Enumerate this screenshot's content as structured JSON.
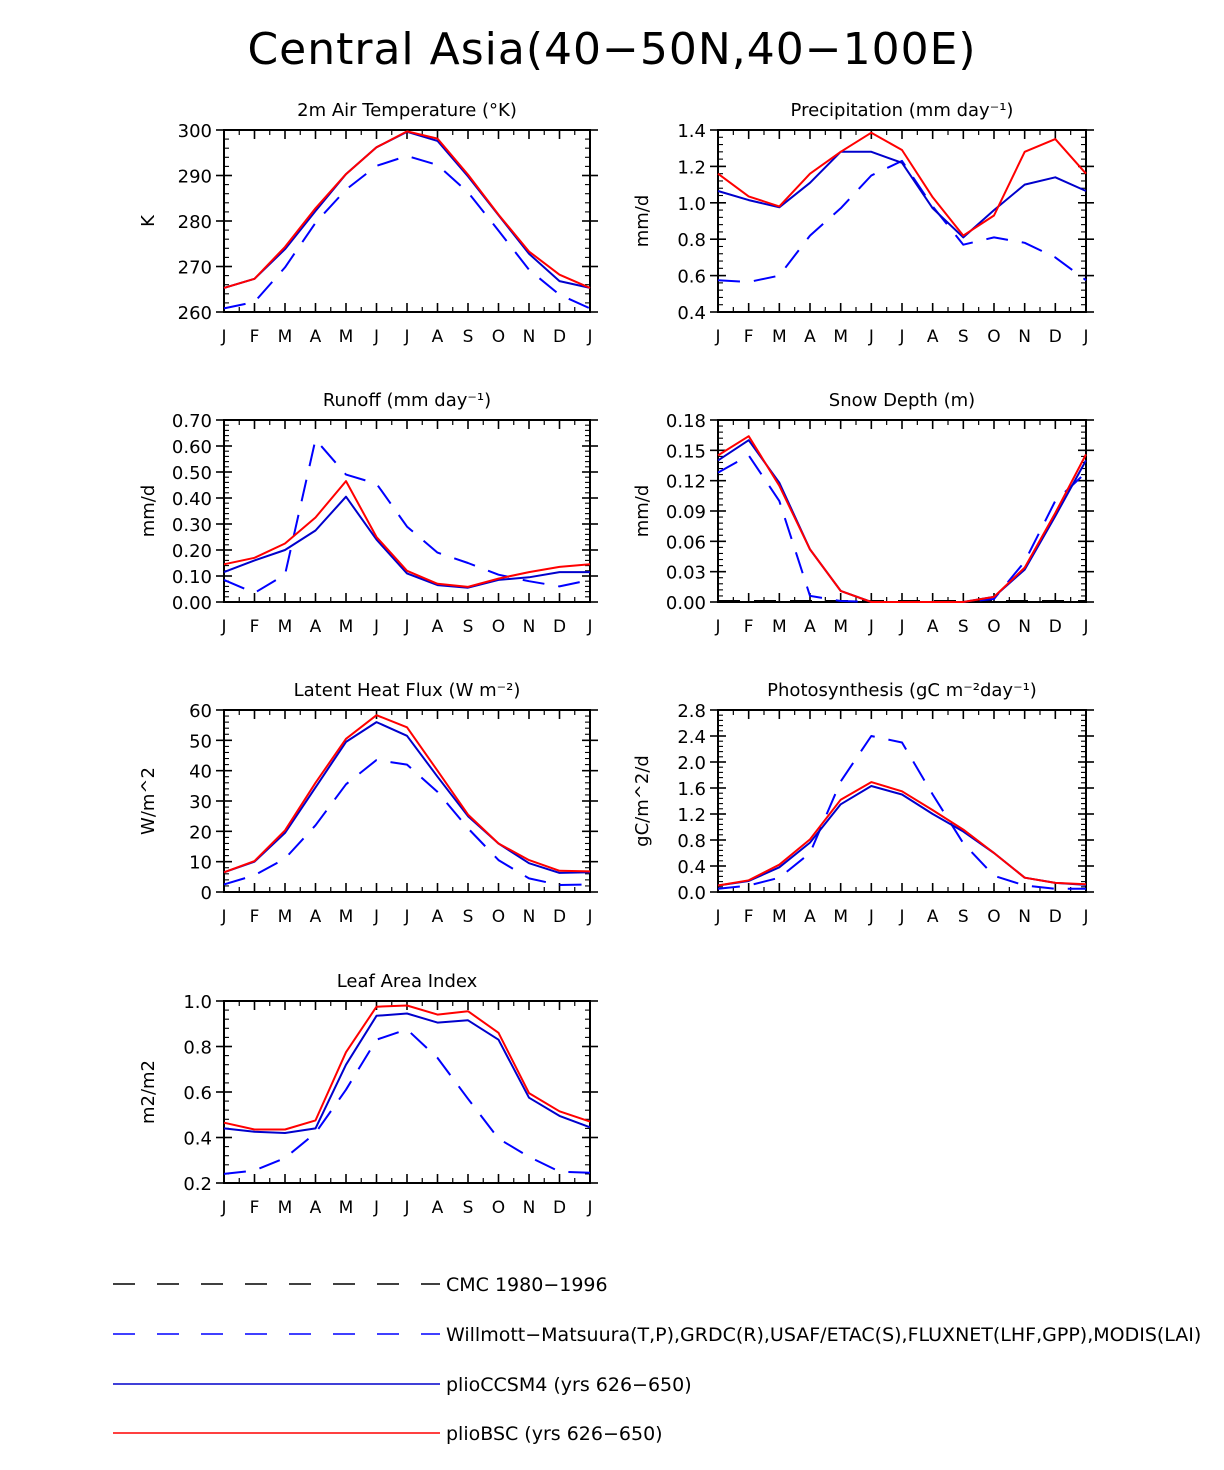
{
  "page": {
    "title": "Central Asia(40−50N,40−100E)"
  },
  "months": [
    "J",
    "F",
    "M",
    "A",
    "M",
    "J",
    "J",
    "A",
    "S",
    "O",
    "N",
    "D",
    "J"
  ],
  "colors": {
    "obs": "#0000ff",
    "cmc": "#000000",
    "ccsm4": "#0000cc",
    "bsc": "#ff0000"
  },
  "legend": [
    {
      "label": "CMC 1980−1996",
      "style": "dash",
      "color": "#000000"
    },
    {
      "label": "Willmott−Matsuura(T,P),GRDC(R),USAF/ETAC(S),FLUXNET(LHF,GPP),MODIS(LAI)",
      "style": "dash",
      "color": "#0000ff"
    },
    {
      "label": "plioCCSM4 (yrs 626−650)",
      "style": "solid",
      "color": "#0000cc"
    },
    {
      "label": "plioBSC (yrs 626−650)",
      "style": "solid",
      "color": "#ff0000"
    }
  ],
  "chart_data": [
    {
      "type": "line",
      "title": "2m Air Temperature (°K)",
      "ylabel": "K",
      "ylim": [
        260,
        300
      ],
      "yticks": [
        260,
        270,
        280,
        290,
        300
      ],
      "ytick_labels": [
        "260",
        "270",
        "280",
        "290",
        "300"
      ],
      "series": [
        {
          "name": "Willmott−Matsuura",
          "style": "dash",
          "color": "#0000ff",
          "values": [
            260.8,
            262.2,
            269.8,
            279.6,
            286.9,
            292.1,
            294.3,
            292.3,
            286.3,
            277.9,
            269.3,
            263.8,
            260.8
          ]
        },
        {
          "name": "plioCCSM4",
          "style": "solid",
          "color": "#0000cc",
          "values": [
            265.3,
            267.3,
            273.8,
            282.2,
            290.3,
            296.2,
            299.6,
            297.6,
            289.8,
            281.3,
            272.8,
            266.8,
            265.3
          ]
        },
        {
          "name": "plioBSC",
          "style": "solid",
          "color": "#ff0000",
          "values": [
            265.3,
            267.3,
            274.3,
            282.8,
            290.3,
            296.2,
            299.7,
            298.1,
            290.2,
            281.4,
            273.3,
            268.2,
            265.3
          ]
        }
      ]
    },
    {
      "type": "line",
      "title": "Precipitation (mm day⁻¹)",
      "ylabel": "mm/d",
      "ylim": [
        0.4,
        1.4
      ],
      "yticks": [
        0.4,
        0.6,
        0.8,
        1.0,
        1.2,
        1.4
      ],
      "ytick_labels": [
        "0.4",
        "0.6",
        "0.8",
        "1.0",
        "1.2",
        "1.4"
      ],
      "series": [
        {
          "name": "Willmott−Matsuura",
          "style": "dash",
          "color": "#0000ff",
          "values": [
            0.575,
            0.565,
            0.6,
            0.82,
            0.97,
            1.15,
            1.23,
            0.98,
            0.77,
            0.81,
            0.78,
            0.7,
            0.575
          ]
        },
        {
          "name": "plioCCSM4",
          "style": "solid",
          "color": "#0000cc",
          "values": [
            1.065,
            1.015,
            0.975,
            1.11,
            1.28,
            1.28,
            1.22,
            0.97,
            0.81,
            0.96,
            1.1,
            1.14,
            1.065
          ]
        },
        {
          "name": "plioBSC",
          "style": "solid",
          "color": "#ff0000",
          "values": [
            1.16,
            1.035,
            0.98,
            1.16,
            1.28,
            1.385,
            1.29,
            1.03,
            0.82,
            0.93,
            1.28,
            1.35,
            1.16
          ]
        }
      ]
    },
    {
      "type": "line",
      "title": "Runoff (mm day⁻¹)",
      "ylabel": "mm/d",
      "ylim": [
        0,
        0.7
      ],
      "yticks": [
        0,
        0.1,
        0.2,
        0.3,
        0.4,
        0.5,
        0.6,
        0.7
      ],
      "ytick_labels": [
        "0.00",
        "0.10",
        "0.20",
        "0.30",
        "0.40",
        "0.50",
        "0.60",
        "0.70"
      ],
      "series": [
        {
          "name": "GRDC",
          "style": "dash",
          "color": "#0000ff",
          "values": [
            0.085,
            0.035,
            0.105,
            0.625,
            0.49,
            0.455,
            0.29,
            0.19,
            0.15,
            0.105,
            0.08,
            0.06,
            0.085
          ]
        },
        {
          "name": "plioCCSM4",
          "style": "solid",
          "color": "#0000cc",
          "values": [
            0.115,
            0.16,
            0.2,
            0.275,
            0.405,
            0.24,
            0.11,
            0.065,
            0.055,
            0.085,
            0.095,
            0.115,
            0.115
          ]
        },
        {
          "name": "plioBSC",
          "style": "solid",
          "color": "#ff0000",
          "values": [
            0.145,
            0.17,
            0.225,
            0.325,
            0.465,
            0.25,
            0.12,
            0.07,
            0.058,
            0.09,
            0.115,
            0.135,
            0.145
          ]
        }
      ]
    },
    {
      "type": "line",
      "title": "Snow Depth (m)",
      "ylabel": "mm/d",
      "ylim": [
        0,
        0.18
      ],
      "yticks": [
        0,
        0.03,
        0.06,
        0.09,
        0.12,
        0.15,
        0.18
      ],
      "ytick_labels": [
        "0.00",
        "0.03",
        "0.06",
        "0.09",
        "0.12",
        "0.15",
        "0.18"
      ],
      "series": [
        {
          "name": "CMC 1980−1996",
          "style": "dash",
          "color": "#000000",
          "values": [
            0.001,
            0.001,
            0.001,
            0.001,
            0.001,
            0.001,
            0.001,
            0.001,
            0.001,
            0.001,
            0.001,
            0.001,
            0.001
          ]
        },
        {
          "name": "USAF/ETAC",
          "style": "dash",
          "color": "#0000ff",
          "values": [
            0.128,
            0.145,
            0.1,
            0.006,
            0.001,
            0.0,
            0.0,
            0.0,
            0.0,
            0.003,
            0.04,
            0.1,
            0.128
          ]
        },
        {
          "name": "plioCCSM4",
          "style": "solid",
          "color": "#0000cc",
          "values": [
            0.14,
            0.16,
            0.118,
            0.052,
            0.011,
            0.0,
            0.0,
            0.0,
            0.0,
            0.005,
            0.032,
            0.085,
            0.14
          ]
        },
        {
          "name": "plioBSC",
          "style": "solid",
          "color": "#ff0000",
          "values": [
            0.145,
            0.164,
            0.115,
            0.052,
            0.011,
            0.0,
            0.0,
            0.0,
            0.0,
            0.005,
            0.034,
            0.088,
            0.146
          ]
        }
      ]
    },
    {
      "type": "line",
      "title": "Latent Heat Flux (W m⁻²)",
      "ylabel": "W/m^2",
      "ylim": [
        0,
        60
      ],
      "yticks": [
        0,
        10,
        20,
        30,
        40,
        50,
        60
      ],
      "ytick_labels": [
        "0",
        "10",
        "20",
        "30",
        "40",
        "50",
        "60"
      ],
      "series": [
        {
          "name": "FLUXNET",
          "style": "dash",
          "color": "#0000ff",
          "values": [
            2.5,
            5.5,
            11.0,
            22.0,
            35.5,
            43.5,
            42.0,
            33.0,
            21.0,
            10.5,
            4.5,
            2.3,
            2.5
          ]
        },
        {
          "name": "plioCCSM4",
          "style": "solid",
          "color": "#0000cc",
          "values": [
            6.5,
            10.0,
            19.5,
            34.5,
            49.5,
            56.0,
            51.5,
            38.0,
            25.0,
            16.0,
            9.5,
            6.3,
            6.5
          ]
        },
        {
          "name": "plioBSC",
          "style": "solid",
          "color": "#ff0000",
          "values": [
            6.5,
            10.2,
            20.3,
            36.0,
            50.5,
            58.3,
            54.3,
            40.0,
            25.5,
            16.0,
            10.5,
            7.0,
            6.8
          ]
        }
      ]
    },
    {
      "type": "line",
      "title": "Photosynthesis (gC m⁻²day⁻¹)",
      "ylabel": "gC/m^2/d",
      "ylim": [
        0,
        2.8
      ],
      "yticks": [
        0,
        0.4,
        0.8,
        1.2,
        1.6,
        2.0,
        2.4,
        2.8
      ],
      "ytick_labels": [
        "0.0",
        "0.4",
        "0.8",
        "1.2",
        "1.6",
        "2.0",
        "2.4",
        "2.8"
      ],
      "series": [
        {
          "name": "FLUXNET",
          "style": "dash",
          "color": "#0000ff",
          "values": [
            0.05,
            0.1,
            0.22,
            0.6,
            1.7,
            2.4,
            2.3,
            1.5,
            0.75,
            0.25,
            0.1,
            0.05,
            0.05
          ]
        },
        {
          "name": "plioCCSM4",
          "style": "solid",
          "color": "#0000cc",
          "values": [
            0.1,
            0.17,
            0.38,
            0.76,
            1.35,
            1.63,
            1.5,
            1.2,
            0.93,
            0.6,
            0.22,
            0.14,
            0.11
          ]
        },
        {
          "name": "plioBSC",
          "style": "solid",
          "color": "#ff0000",
          "values": [
            0.1,
            0.18,
            0.42,
            0.81,
            1.42,
            1.69,
            1.55,
            1.26,
            0.96,
            0.6,
            0.22,
            0.14,
            0.12
          ]
        }
      ]
    },
    {
      "type": "line",
      "title": "Leaf Area Index",
      "ylabel": "m2/m2",
      "ylim": [
        0.2,
        1.0
      ],
      "yticks": [
        0.2,
        0.4,
        0.6,
        0.8,
        1.0
      ],
      "ytick_labels": [
        "0.2",
        "0.4",
        "0.6",
        "0.8",
        "1.0"
      ],
      "series": [
        {
          "name": "MODIS",
          "style": "dash",
          "color": "#0000ff",
          "values": [
            0.24,
            0.255,
            0.31,
            0.42,
            0.61,
            0.83,
            0.875,
            0.75,
            0.57,
            0.395,
            0.315,
            0.25,
            0.245
          ]
        },
        {
          "name": "plioCCSM4",
          "style": "solid",
          "color": "#0000cc",
          "values": [
            0.44,
            0.425,
            0.42,
            0.44,
            0.72,
            0.935,
            0.945,
            0.905,
            0.915,
            0.83,
            0.575,
            0.495,
            0.445
          ]
        },
        {
          "name": "plioBSC",
          "style": "solid",
          "color": "#ff0000",
          "values": [
            0.465,
            0.435,
            0.435,
            0.475,
            0.775,
            0.975,
            0.98,
            0.94,
            0.955,
            0.86,
            0.595,
            0.515,
            0.47
          ]
        }
      ]
    }
  ]
}
